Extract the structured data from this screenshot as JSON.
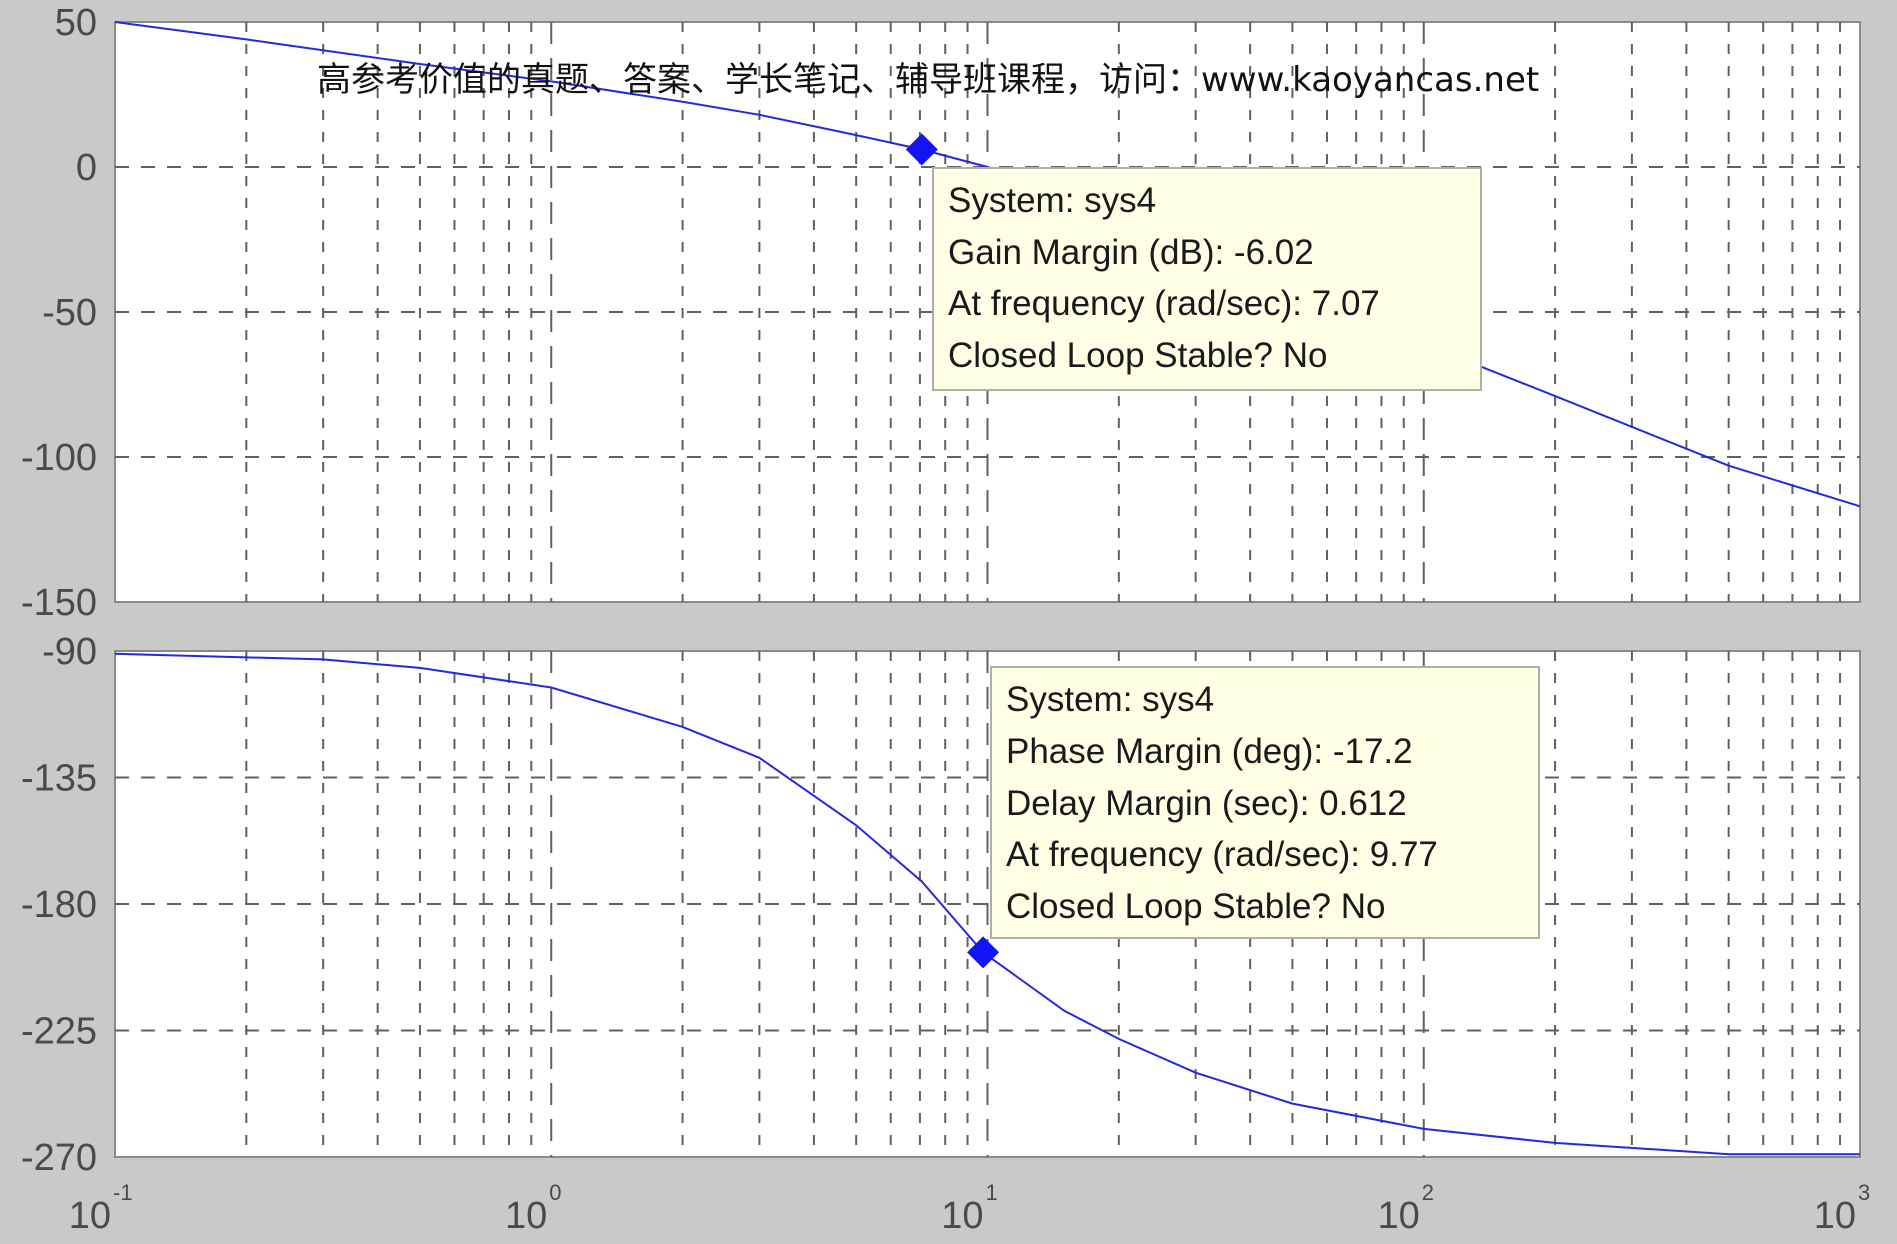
{
  "watermark": "高参考价值的真题、答案、学长笔记、辅导班课程，访问：www.kaoyancas.net",
  "colors": {
    "background": "#c9c9c9",
    "plot_bg": "#ffffff",
    "curve": "#2727e0",
    "marker": "#1414f5",
    "grid": "#606060",
    "tooltip_bg": "#ffffe6",
    "tooltip_border": "#b0b0a0"
  },
  "tooltips": {
    "magnitude": {
      "system": "System: sys4",
      "gain_margin": "Gain Margin (dB): -6.02",
      "frequency": "At frequency (rad/sec): 7.07",
      "stable": "Closed Loop Stable? No"
    },
    "phase": {
      "system": "System: sys4",
      "phase_margin": "Phase Margin (deg): -17.2",
      "delay_margin": "Delay Margin (sec): 0.612",
      "frequency": "At frequency (rad/sec): 9.77",
      "stable": "Closed Loop Stable? No"
    }
  },
  "chart_data": [
    {
      "type": "line",
      "name": "magnitude",
      "x_scale": "log",
      "xlim": [
        0.1,
        1000
      ],
      "ylim": [
        -150,
        50
      ],
      "yticks": [
        50,
        0,
        -50,
        -100,
        -150
      ],
      "grid": true,
      "x": [
        0.1,
        0.2,
        0.5,
        1,
        2,
        3,
        5,
        7.07,
        10,
        20,
        50,
        100,
        200,
        500,
        1000
      ],
      "y": [
        50,
        44,
        35.5,
        29.5,
        22.5,
        18,
        11,
        6.02,
        0,
        -18,
        -43,
        -61,
        -79,
        -103,
        -117
      ],
      "marker": {
        "x": 7.07,
        "y": 6.02
      }
    },
    {
      "type": "line",
      "name": "phase",
      "x_scale": "log",
      "xlim": [
        0.1,
        1000
      ],
      "ylim": [
        -270,
        -90
      ],
      "yticks": [
        -90,
        -135,
        -180,
        -225,
        -270
      ],
      "grid": true,
      "x": [
        0.1,
        0.3,
        0.5,
        1,
        2,
        3,
        5,
        7.07,
        9.77,
        15,
        20,
        30,
        50,
        100,
        200,
        500,
        1000
      ],
      "y": [
        -91,
        -93,
        -96,
        -103,
        -117,
        -128,
        -152,
        -172,
        -197.2,
        -218,
        -228,
        -240,
        -251,
        -260,
        -265,
        -269,
        -269
      ],
      "marker": {
        "x": 9.77,
        "y": -197.2
      }
    }
  ],
  "x_axis": {
    "ticks": [
      {
        "base": "10",
        "exp": "-1"
      },
      {
        "base": "10",
        "exp": "0"
      },
      {
        "base": "10",
        "exp": "1"
      },
      {
        "base": "10",
        "exp": "2"
      },
      {
        "base": "10",
        "exp": "3"
      }
    ]
  }
}
